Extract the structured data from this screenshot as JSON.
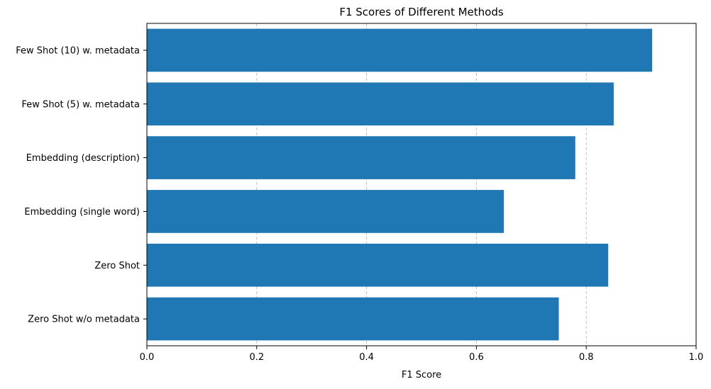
{
  "chart_data": {
    "type": "bar",
    "orientation": "horizontal",
    "title": "F1 Scores of Different Methods",
    "xlabel": "F1 Score",
    "ylabel": "",
    "categories": [
      "Zero Shot w/o metadata",
      "Zero Shot",
      "Embedding (single word)",
      "Embedding (description)",
      "Few Shot (5) w. metadata",
      "Few Shot (10) w. metadata"
    ],
    "values": [
      0.75,
      0.84,
      0.65,
      0.78,
      0.85,
      0.92
    ],
    "xlim": [
      0.0,
      1.0
    ],
    "xticks": [
      "0.0",
      "0.2",
      "0.4",
      "0.6",
      "0.8",
      "1.0"
    ],
    "grid": "x-axis, dashed",
    "bar_color": "#1f77b4"
  }
}
